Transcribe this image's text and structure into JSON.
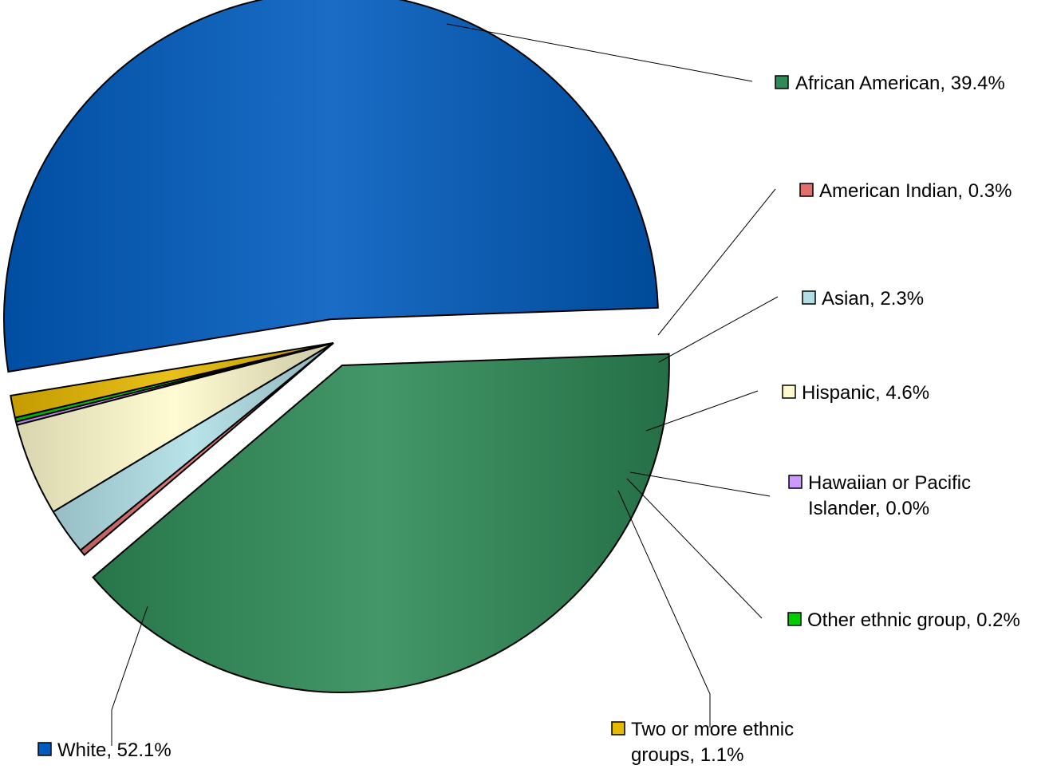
{
  "chart_data": {
    "type": "pie",
    "title": "",
    "series": [
      {
        "categories": [
          "African American",
          "American Indian",
          "Asian",
          "Hispanic",
          "Hawaiian or Pacific Islander",
          "Other ethnic group",
          "Two or more ethnic groups",
          "White"
        ],
        "values": [
          39.4,
          0.3,
          2.3,
          4.6,
          0.0,
          0.2,
          1.1,
          52.1
        ]
      }
    ],
    "labels": [
      {
        "lines": [
          "African American, 39.4%"
        ]
      },
      {
        "lines": [
          "American Indian, 0.3%"
        ]
      },
      {
        "lines": [
          "Asian, 2.3%"
        ]
      },
      {
        "lines": [
          "Hispanic, 4.6%"
        ]
      },
      {
        "lines": [
          "Hawaiian or Pacific",
          "Islander,         0.0%"
        ]
      },
      {
        "lines": [
          "Other ethnic group, 0.2%"
        ]
      },
      {
        "lines": [
          "Two or more ethnic",
          "groups,          1.1%"
        ]
      },
      {
        "lines": [
          "White, 52.1%"
        ]
      }
    ],
    "colors": [
      "#2e8b57",
      "#e07070",
      "#b0e0e6",
      "#fffacd",
      "#cc99ff",
      "#00cc00",
      "#e6b800",
      "#005cbf"
    ],
    "legend": "none",
    "grid": false
  }
}
